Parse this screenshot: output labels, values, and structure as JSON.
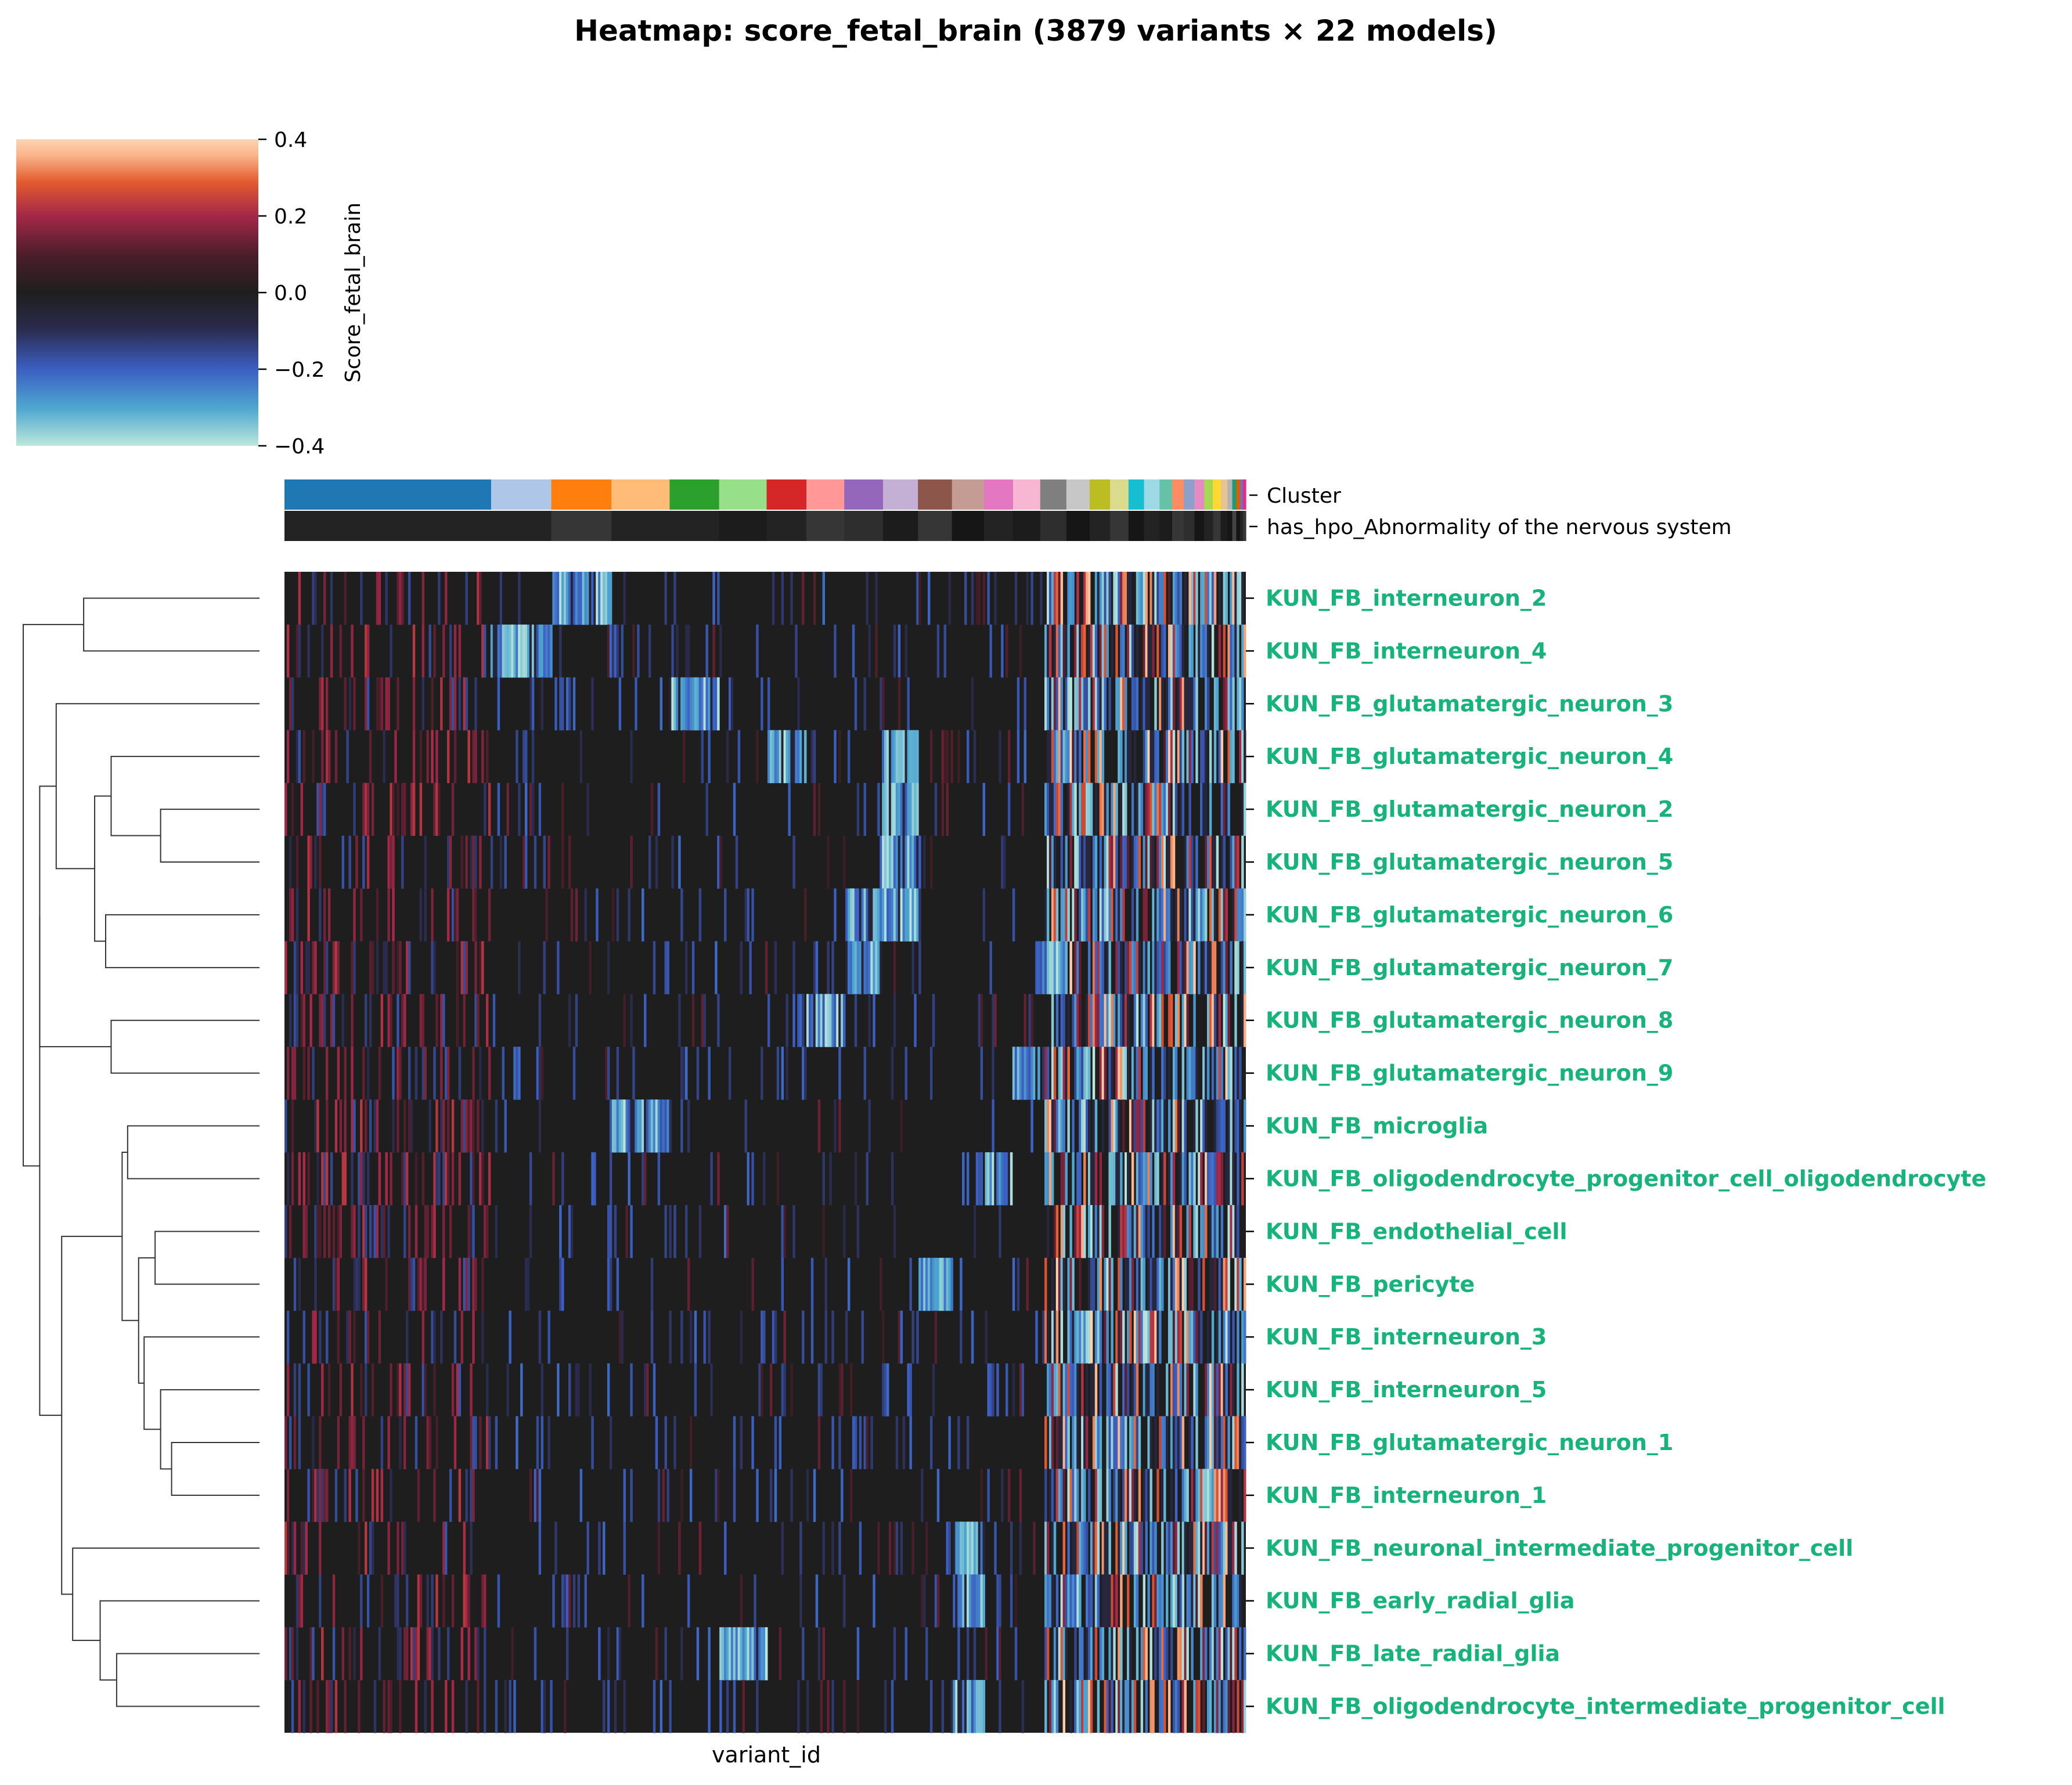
{
  "chart_data": {
    "type": "heatmap",
    "title": "Heatmap: score_fetal_brain (3879 variants × 22 models)",
    "xlabel": "variant_id",
    "ylabel": "",
    "n_variants": 3879,
    "n_models": 22,
    "colorbar": {
      "label": "Score_fetal_brain",
      "vmin": -0.4,
      "vmax": 0.4,
      "ticks": [
        0.4,
        0.2,
        0.0,
        -0.2,
        -0.4
      ],
      "tick_labels": [
        "0.4",
        "0.2",
        "0.0",
        "−0.2",
        "−0.4"
      ],
      "colormap": "icefire",
      "colors": [
        "#bde7db",
        "#4fa8d0",
        "#3b5fc2",
        "#2b2b4e",
        "#1e1e1e",
        "#4a1e2a",
        "#a32848",
        "#e35a2e",
        "#fbb68c",
        "#fcd4b2"
      ]
    },
    "annotation_rows": [
      "Cluster",
      "has_hpo_Abnormality of the nervous system"
    ],
    "clusters": [
      {
        "fraction": 0.213,
        "color": "#1f77b4",
        "hpo": "#232323"
      },
      {
        "fraction": 0.062,
        "color": "#aec7e8",
        "hpo": "#232323"
      },
      {
        "fraction": 0.062,
        "color": "#ff7f0e",
        "hpo": "#363636"
      },
      {
        "fraction": 0.06,
        "color": "#ffbb78",
        "hpo": "#232323"
      },
      {
        "fraction": 0.051,
        "color": "#2ca02c",
        "hpo": "#232323"
      },
      {
        "fraction": 0.049,
        "color": "#98df8a",
        "hpo": "#1c1c1c"
      },
      {
        "fraction": 0.041,
        "color": "#d62728",
        "hpo": "#232323"
      },
      {
        "fraction": 0.039,
        "color": "#ff9896",
        "hpo": "#363636"
      },
      {
        "fraction": 0.04,
        "color": "#9467bd",
        "hpo": "#2e2e2e"
      },
      {
        "fraction": 0.036,
        "color": "#c5b0d5",
        "hpo": "#1c1c1c"
      },
      {
        "fraction": 0.035,
        "color": "#8c564b",
        "hpo": "#363636"
      },
      {
        "fraction": 0.033,
        "color": "#c49c94",
        "hpo": "#161616"
      },
      {
        "fraction": 0.03,
        "color": "#e377c2",
        "hpo": "#232323"
      },
      {
        "fraction": 0.028,
        "color": "#f7b6d2",
        "hpo": "#1c1c1c"
      },
      {
        "fraction": 0.027,
        "color": "#7f7f7f",
        "hpo": "#2e2e2e"
      },
      {
        "fraction": 0.024,
        "color": "#c7c7c7",
        "hpo": "#161616"
      },
      {
        "fraction": 0.021,
        "color": "#bcbd22",
        "hpo": "#232323"
      },
      {
        "fraction": 0.019,
        "color": "#dbdb8d",
        "hpo": "#363636"
      },
      {
        "fraction": 0.016,
        "color": "#17becf",
        "hpo": "#161616"
      },
      {
        "fraction": 0.016,
        "color": "#9edae5",
        "hpo": "#232323"
      },
      {
        "fraction": 0.013,
        "color": "#66c2a5",
        "hpo": "#1c1c1c"
      },
      {
        "fraction": 0.012,
        "color": "#fc8d62",
        "hpo": "#363636"
      },
      {
        "fraction": 0.011,
        "color": "#8da0cb",
        "hpo": "#2e2e2e"
      },
      {
        "fraction": 0.01,
        "color": "#e78ac3",
        "hpo": "#161616"
      },
      {
        "fraction": 0.009,
        "color": "#a6d854",
        "hpo": "#232323"
      },
      {
        "fraction": 0.008,
        "color": "#ffd92f",
        "hpo": "#363636"
      },
      {
        "fraction": 0.007,
        "color": "#e5c494",
        "hpo": "#1c1c1c"
      },
      {
        "fraction": 0.005,
        "color": "#b3b3b3",
        "hpo": "#161616"
      },
      {
        "fraction": 0.004,
        "color": "#1b9e77",
        "hpo": "#444444"
      },
      {
        "fraction": 0.004,
        "color": "#d95f02",
        "hpo": "#161616"
      },
      {
        "fraction": 0.003,
        "color": "#7570b3",
        "hpo": "#232323"
      },
      {
        "fraction": 0.003,
        "color": "#e7298a",
        "hpo": "#363636"
      }
    ],
    "rows": [
      {
        "label": "KUN_FB_interneuron_2",
        "hot": [
          2
        ]
      },
      {
        "label": "KUN_FB_interneuron_4",
        "hot": [
          1
        ]
      },
      {
        "label": "KUN_FB_glutamatergic_neuron_3",
        "hot": [
          4
        ]
      },
      {
        "label": "KUN_FB_glutamatergic_neuron_4",
        "hot": [
          6,
          9
        ]
      },
      {
        "label": "KUN_FB_glutamatergic_neuron_2",
        "hot": [
          9
        ]
      },
      {
        "label": "KUN_FB_glutamatergic_neuron_5",
        "hot": [
          9
        ]
      },
      {
        "label": "KUN_FB_glutamatergic_neuron_6",
        "hot": [
          8,
          9
        ]
      },
      {
        "label": "KUN_FB_glutamatergic_neuron_7",
        "hot": [
          8,
          14
        ]
      },
      {
        "label": "KUN_FB_glutamatergic_neuron_8",
        "hot": [
          7
        ]
      },
      {
        "label": "KUN_FB_glutamatergic_neuron_9",
        "hot": [
          13
        ]
      },
      {
        "label": "KUN_FB_microglia",
        "hot": [
          3
        ]
      },
      {
        "label": "KUN_FB_oligodendrocyte_progenitor_cell_oligodendrocyte",
        "hot": [
          12
        ]
      },
      {
        "label": "KUN_FB_endothelial_cell",
        "hot": []
      },
      {
        "label": "KUN_FB_pericyte",
        "hot": [
          10
        ]
      },
      {
        "label": "KUN_FB_interneuron_3",
        "hot": [
          15
        ]
      },
      {
        "label": "KUN_FB_interneuron_5",
        "hot": []
      },
      {
        "label": "KUN_FB_glutamatergic_neuron_1",
        "hot": []
      },
      {
        "label": "KUN_FB_interneuron_1",
        "hot": []
      },
      {
        "label": "KUN_FB_neuronal_intermediate_progenitor_cell",
        "hot": [
          11
        ]
      },
      {
        "label": "KUN_FB_early_radial_glia",
        "hot": [
          11
        ]
      },
      {
        "label": "KUN_FB_late_radial_glia",
        "hot": [
          5
        ]
      },
      {
        "label": "KUN_FB_oligodendrocyte_intermediate_progenitor_cell",
        "hot": [
          11
        ]
      }
    ],
    "row_label_color": "#16b47c",
    "dendrogram": {
      "links": [
        [
          0,
          1,
          0.32
        ],
        [
          4,
          5,
          0.18
        ],
        [
          3,
          23,
          0.27
        ],
        [
          6,
          7,
          0.28
        ],
        [
          24,
          25,
          0.3
        ],
        [
          2,
          26,
          0.37
        ],
        [
          8,
          9,
          0.27
        ],
        [
          27,
          28,
          0.4
        ],
        [
          16,
          17,
          0.16
        ],
        [
          15,
          30,
          0.18
        ],
        [
          14,
          31,
          0.21
        ],
        [
          12,
          13,
          0.19
        ],
        [
          32,
          33,
          0.22
        ],
        [
          10,
          11,
          0.24
        ],
        [
          34,
          35,
          0.25
        ],
        [
          20,
          21,
          0.26
        ],
        [
          19,
          37,
          0.29
        ],
        [
          18,
          38,
          0.34
        ],
        [
          36,
          39,
          0.36
        ],
        [
          29,
          40,
          0.4
        ],
        [
          22,
          41,
          0.43
        ]
      ],
      "note_leaf_index": 22
    }
  }
}
